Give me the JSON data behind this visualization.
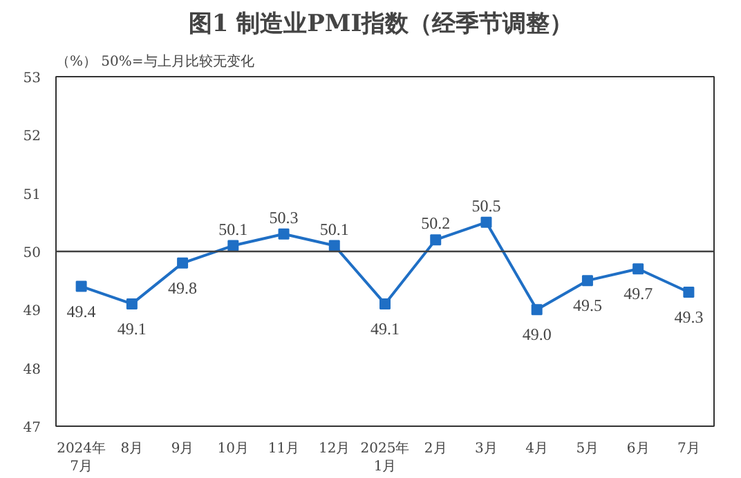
{
  "chart_data": {
    "type": "line",
    "title": "图1  制造业PMI指数（经季节调整）",
    "ylabel": "（%）",
    "annotations": [
      "50%=与上月比较无变化"
    ],
    "categories": [
      "2024年\n7月",
      "8月",
      "9月",
      "10月",
      "11月",
      "12月",
      "2025年\n1月",
      "2月",
      "3月",
      "4月",
      "5月",
      "6月",
      "7月"
    ],
    "series": [
      {
        "color": "#1f6fc5",
        "values": [
          49.4,
          49.1,
          49.8,
          50.1,
          50.3,
          50.1,
          49.1,
          50.2,
          50.5,
          49.0,
          49.5,
          49.7,
          49.3
        ]
      }
    ],
    "value_labels": [
      "49.4",
      "49.1",
      "49.8",
      "50.1",
      "50.3",
      "50.1",
      "49.1",
      "50.2",
      "50.5",
      "49.0",
      "49.5",
      "49.7",
      "49.3"
    ],
    "ylim": [
      47,
      53
    ],
    "yticks": [
      47,
      48,
      49,
      50,
      51,
      52,
      53
    ],
    "ref_lines": [
      {
        "axis": "y",
        "value": 50,
        "color": "#404040"
      }
    ],
    "marker": "square",
    "line_style": "solid",
    "grid": false
  }
}
